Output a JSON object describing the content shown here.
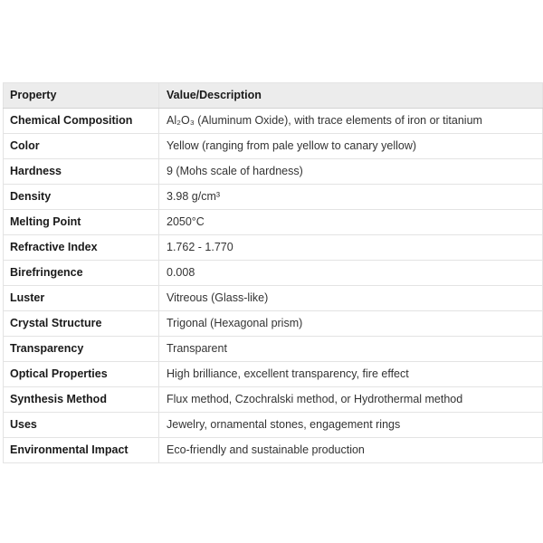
{
  "page": {
    "background": "#ffffff"
  },
  "colors": {
    "header_bg": "#ececec",
    "outer_border": "#d8d8d8",
    "row_border": "#e3e3e3",
    "header_text": "#1a1a1a",
    "property_text": "#1a1a1a",
    "value_text": "#333333"
  },
  "table": {
    "headers": {
      "property": "Property",
      "value": "Value/Description"
    },
    "rows": [
      {
        "property": "Chemical Composition",
        "value": "Al₂O₃ (Aluminum Oxide), with trace elements of iron or titanium"
      },
      {
        "property": "Color",
        "value": "Yellow (ranging from pale yellow to canary yellow)"
      },
      {
        "property": "Hardness",
        "value": "9 (Mohs scale of hardness)"
      },
      {
        "property": "Density",
        "value": "3.98 g/cm³"
      },
      {
        "property": "Melting Point",
        "value": "2050°C"
      },
      {
        "property": "Refractive Index",
        "value": "1.762 - 1.770"
      },
      {
        "property": "Birefringence",
        "value": "0.008"
      },
      {
        "property": "Luster",
        "value": "Vitreous (Glass-like)"
      },
      {
        "property": "Crystal Structure",
        "value": "Trigonal (Hexagonal prism)"
      },
      {
        "property": "Transparency",
        "value": "Transparent"
      },
      {
        "property": "Optical Properties",
        "value": "High brilliance, excellent transparency, fire effect"
      },
      {
        "property": "Synthesis Method",
        "value": "Flux method, Czochralski method, or Hydrothermal method"
      },
      {
        "property": "Uses",
        "value": "Jewelry, ornamental stones, engagement rings"
      },
      {
        "property": "Environmental Impact",
        "value": "Eco-friendly and sustainable production"
      }
    ]
  }
}
